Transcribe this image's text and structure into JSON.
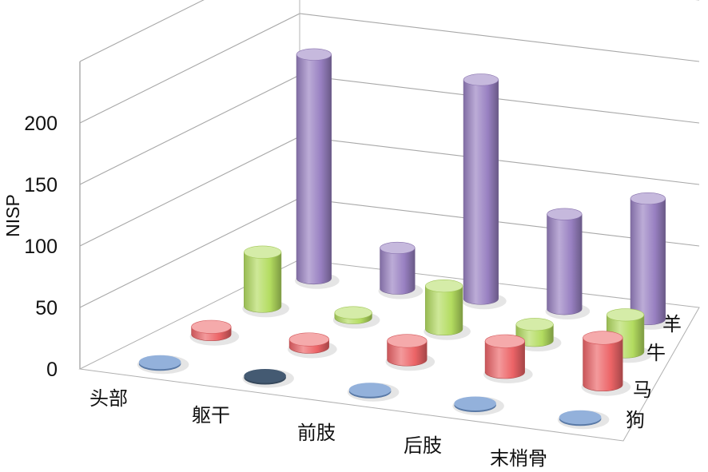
{
  "chart_data": {
    "type": "bar",
    "categories": [
      "头部",
      "躯干",
      "前肢",
      "后肢",
      "末梢骨"
    ],
    "ylabel": "NISP",
    "ylim": [
      0,
      250
    ],
    "yticks": [
      0,
      50,
      100,
      150,
      200
    ],
    "series": [
      {
        "name": "狗",
        "values": [
          0,
          0,
          0,
          0,
          0
        ]
      },
      {
        "name": "马",
        "values": [
          6,
          6,
          15,
          25,
          38
        ]
      },
      {
        "name": "牛",
        "values": [
          44,
          4,
          35,
          13,
          30
        ]
      },
      {
        "name": "羊",
        "values": [
          182,
          33,
          178,
          77,
          98
        ]
      }
    ],
    "grid": true
  },
  "colors": {
    "狗": "#6f97cf",
    "马": "#ec6467",
    "牛": "#b3dc60",
    "羊": "#9880c1",
    "狗_dark": "#445a72"
  }
}
